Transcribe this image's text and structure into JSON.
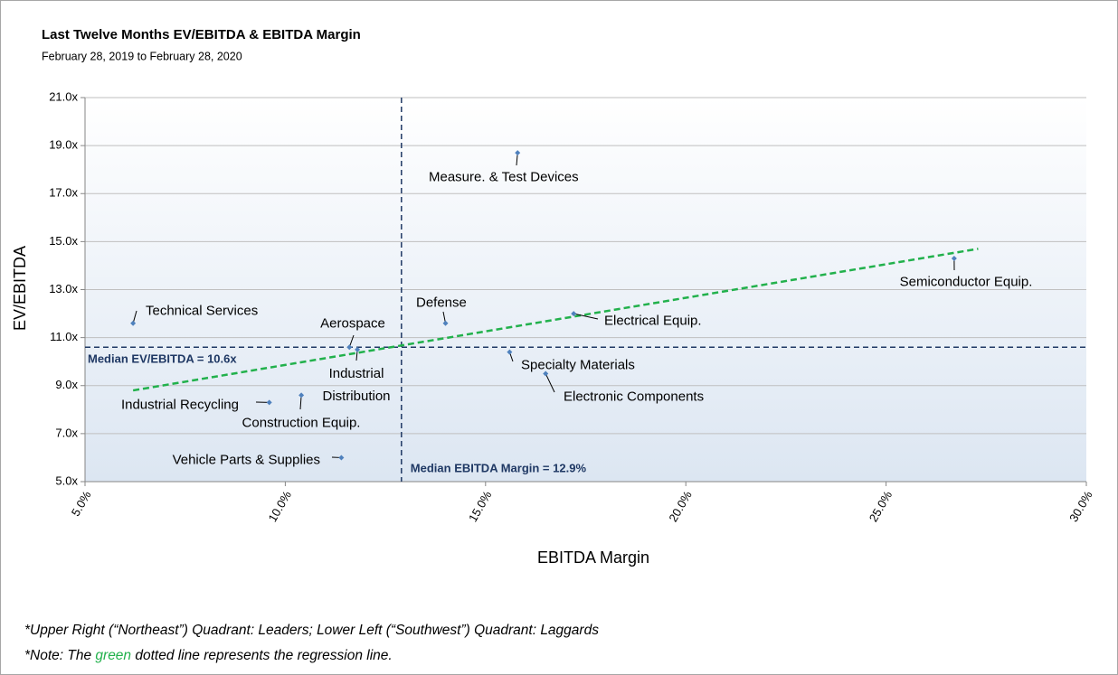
{
  "chart_data": {
    "type": "scatter",
    "title": "Last Twelve Months EV/EBITDA & EBITDA Margin",
    "subtitle": "February 28, 2019 to February 28, 2020",
    "x_label": "EBITDA Margin",
    "y_label": "EV/EBITDA",
    "labels": [
      "Technical Services",
      "Defense",
      "Measure. & Test Devices",
      "Semiconductor Equip.",
      "Electrical Equip.",
      "Aerospace",
      "Industrial Distribution",
      "Specialty Materials",
      "Electronic Components",
      "Industrial Recycling",
      "Construction Equip.",
      "Vehicle Parts & Supplies"
    ],
    "x": [
      6.2,
      14.0,
      15.8,
      26.7,
      17.2,
      11.6,
      11.8,
      15.6,
      16.5,
      9.6,
      10.4,
      11.4
    ],
    "y": [
      11.6,
      11.6,
      18.7,
      14.3,
      12.0,
      10.6,
      10.5,
      10.4,
      9.5,
      8.3,
      8.6,
      6.0
    ],
    "color": "#4f81bd",
    "xlim": [
      5,
      30
    ],
    "ylim": [
      5,
      21
    ],
    "xticks": [
      {
        "value": 5,
        "label": "5.0%"
      },
      {
        "value": 10,
        "label": "10.0%"
      },
      {
        "value": 15,
        "label": "15.0%"
      },
      {
        "value": 20,
        "label": "20.0%"
      },
      {
        "value": 25,
        "label": "25.0%"
      },
      {
        "value": 30,
        "label": "30.0%"
      }
    ],
    "yticks": [
      {
        "value": 5,
        "label": "5.0x"
      },
      {
        "value": 7,
        "label": "7.0x"
      },
      {
        "value": 9,
        "label": "9.0x"
      },
      {
        "value": 11,
        "label": "11.0x"
      },
      {
        "value": 13,
        "label": "13.0x"
      },
      {
        "value": 15,
        "label": "15.0x"
      },
      {
        "value": 17,
        "label": "17.0x"
      },
      {
        "value": 19,
        "label": "19.0x"
      },
      {
        "value": 21,
        "label": "21.0x"
      }
    ],
    "grid": true,
    "reference_lines": [
      {
        "axis": "y",
        "value": 10.6,
        "label": "Median EV/EBITDA = 10.6x",
        "color": "#1f3864"
      },
      {
        "axis": "x",
        "value": 12.9,
        "label": "Median EBITDA Margin = 12.9%",
        "color": "#1f3864"
      }
    ],
    "trendline": {
      "x": [
        6.2,
        27.3
      ],
      "y": [
        8.8,
        14.7
      ],
      "color": "#22b14c"
    }
  },
  "notes": {
    "line1": "*Upper Right (“Northeast”) Quadrant: Leaders; Lower Left (“Southwest”) Quadrant: Laggards",
    "line2": [
      "*Note: The ",
      "green",
      " dotted line represents the regression line."
    ],
    "highlight_color": "#22b14c"
  }
}
